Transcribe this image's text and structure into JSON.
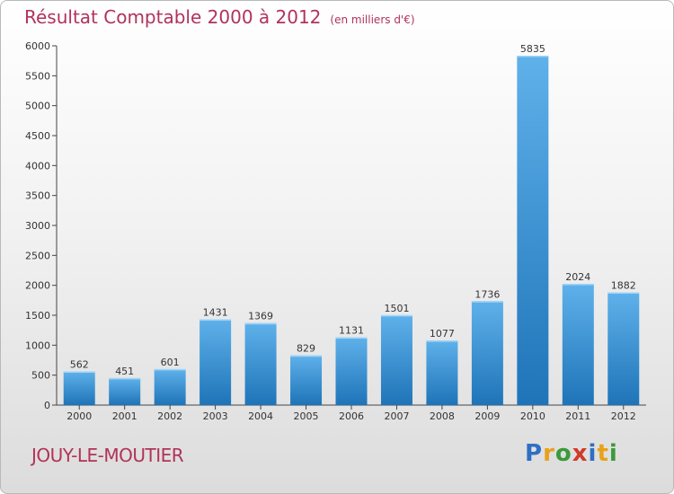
{
  "chart_data": {
    "type": "bar",
    "title": "Résultat Comptable 2000 à 2012",
    "subtitle": "(en milliers d'€)",
    "categories": [
      "2000",
      "2001",
      "2002",
      "2003",
      "2004",
      "2005",
      "2006",
      "2007",
      "2008",
      "2009",
      "2010",
      "2011",
      "2012"
    ],
    "values": [
      562,
      451,
      601,
      1431,
      1369,
      829,
      1131,
      1501,
      1077,
      1736,
      5835,
      2024,
      1882
    ],
    "ylim": [
      0,
      6000
    ],
    "yticks": [
      0,
      500,
      1000,
      1500,
      2000,
      2500,
      3000,
      3500,
      4000,
      4500,
      5000,
      5500,
      6000
    ],
    "xlabel": "",
    "ylabel": "",
    "grid": false,
    "bar_color_light": "#5fb1ea",
    "bar_color_dark": "#1e74b8"
  },
  "commune": "JOUY-LE-MOUTIER",
  "logo": {
    "letters": [
      "P",
      "r",
      "o",
      "x",
      "i",
      "t",
      "i"
    ],
    "colors": [
      "#2f6fc4",
      "#e8a21a",
      "#3a9a3a",
      "#d23a2a",
      "#2f6fc4",
      "#e8a21a",
      "#3a9a3a"
    ]
  },
  "colors": {
    "title": "#b2325a",
    "axis": "#444444",
    "text": "#333333"
  }
}
